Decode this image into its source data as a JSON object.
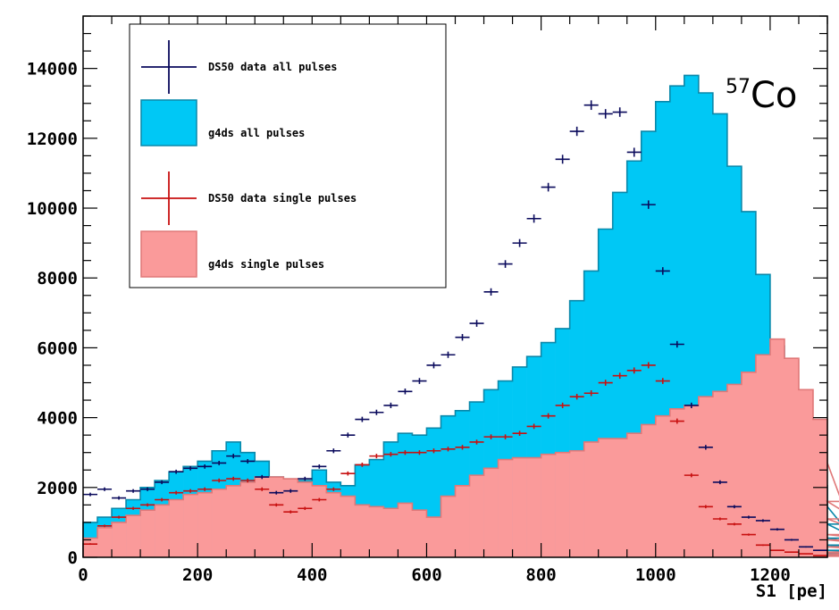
{
  "chart_data": {
    "type": "histogram",
    "title": "",
    "annotation": {
      "superscript": "57",
      "text": "Co"
    },
    "xlabel": "S1 [pe]",
    "ylabel": "",
    "xlim": [
      0,
      1300
    ],
    "ylim": [
      0,
      15500
    ],
    "bin_width": 25,
    "xticks": [
      0,
      200,
      400,
      600,
      800,
      1000,
      1200
    ],
    "yticks": [
      0,
      2000,
      4000,
      6000,
      8000,
      10000,
      12000,
      14000
    ],
    "legend_position": "top-left",
    "colors": {
      "all_data": "#0a0a5c",
      "all_fill": "#00c8f5",
      "all_edge": "#0a88aa",
      "single_data": "#c81010",
      "single_fill": "#fa9a9a",
      "single_edge": "#e07878"
    },
    "series": [
      {
        "name": "DS50 data all pulses",
        "kind": "points",
        "x": [
          12.5,
          37.5,
          62.5,
          87.5,
          112.5,
          137.5,
          162.5,
          187.5,
          212.5,
          237.5,
          262.5,
          287.5,
          312.5,
          337.5,
          362.5,
          387.5,
          412.5,
          437.5,
          462.5,
          487.5,
          512.5,
          537.5,
          562.5,
          587.5,
          612.5,
          637.5,
          662.5,
          687.5,
          712.5,
          737.5,
          762.5,
          787.5,
          812.5,
          837.5,
          862.5,
          887.5,
          912.5,
          937.5,
          962.5,
          987.5,
          1012.5,
          1037.5,
          1062.5,
          1087.5,
          1112.5,
          1137.5,
          1162.5,
          1187.5,
          1212.5,
          1237.5,
          1262.5,
          1287.5
        ],
        "values": [
          1800,
          1950,
          1700,
          1900,
          1950,
          2150,
          2450,
          2550,
          2600,
          2700,
          2900,
          2750,
          2300,
          1850,
          1900,
          2250,
          2600,
          3050,
          3500,
          3950,
          4150,
          4350,
          4750,
          5050,
          5500,
          5800,
          6300,
          6700,
          7600,
          8400,
          9000,
          9700,
          10600,
          11400,
          12200,
          12950,
          12700,
          12750,
          11600,
          10100,
          8200,
          6100,
          4350,
          3150,
          2150,
          1450,
          1150,
          1050,
          800,
          500,
          300,
          200
        ]
      },
      {
        "name": "g4ds all pulses",
        "kind": "filled-histogram",
        "values": [
          1000,
          1150,
          1400,
          1650,
          2000,
          2200,
          2450,
          2600,
          2750,
          3050,
          3300,
          3000,
          2750,
          2300,
          2050,
          2200,
          2500,
          2150,
          2050,
          2650,
          2800,
          3300,
          3550,
          3500,
          3700,
          4050,
          4200,
          4450,
          4800,
          5050,
          5450,
          5750,
          6150,
          6550,
          7350,
          8200,
          9400,
          10450,
          11350,
          12200,
          13050,
          13500,
          13800,
          13300,
          12700,
          11200,
          9900,
          8100,
          6050,
          4450,
          3050,
          2050,
          1450,
          950,
          550,
          350,
          200,
          120,
          80,
          70,
          60,
          50,
          90,
          120,
          80,
          60,
          50,
          40,
          60,
          50,
          50,
          50
        ]
      },
      {
        "name": "DS50 data single pulses",
        "kind": "points",
        "x": [
          12.5,
          37.5,
          62.5,
          87.5,
          112.5,
          137.5,
          162.5,
          187.5,
          212.5,
          237.5,
          262.5,
          287.5,
          312.5,
          337.5,
          362.5,
          387.5,
          412.5,
          437.5,
          462.5,
          487.5,
          512.5,
          537.5,
          562.5,
          587.5,
          612.5,
          637.5,
          662.5,
          687.5,
          712.5,
          737.5,
          762.5,
          787.5,
          812.5,
          837.5,
          862.5,
          887.5,
          912.5,
          937.5,
          962.5,
          987.5,
          1012.5,
          1037.5,
          1062.5,
          1087.5,
          1112.5,
          1137.5,
          1162.5,
          1187.5,
          1212.5,
          1237.5,
          1262.5,
          1287.5
        ],
        "values": [
          380,
          900,
          1150,
          1400,
          1500,
          1650,
          1850,
          1900,
          1950,
          2200,
          2250,
          2200,
          1950,
          1500,
          1300,
          1400,
          1650,
          1950,
          2400,
          2650,
          2900,
          2950,
          3000,
          3000,
          3050,
          3100,
          3150,
          3300,
          3450,
          3450,
          3550,
          3750,
          4050,
          4350,
          4600,
          4700,
          5000,
          5200,
          5350,
          5500,
          5050,
          3900,
          2350,
          1450,
          1100,
          950,
          650,
          350,
          200,
          150,
          100,
          50
        ]
      },
      {
        "name": "g4ds single pulses",
        "kind": "filled-histogram",
        "values": [
          550,
          850,
          1000,
          1200,
          1350,
          1500,
          1650,
          1800,
          1850,
          1950,
          2050,
          2150,
          2300,
          2300,
          2250,
          2150,
          2050,
          1850,
          1750,
          1500,
          1450,
          1400,
          1550,
          1350,
          1150,
          1750,
          2050,
          2350,
          2550,
          2800,
          2850,
          2850,
          2950,
          3000,
          3050,
          3300,
          3400,
          3400,
          3550,
          3800,
          4050,
          4250,
          4350,
          4600,
          4750,
          4950,
          5300,
          5800,
          6250,
          5700,
          4800,
          3950,
          2700,
          1600,
          1100,
          650,
          500,
          300,
          150,
          100,
          80,
          60,
          50,
          50,
          40,
          40,
          40,
          30,
          40,
          30,
          40,
          30
        ]
      }
    ]
  }
}
